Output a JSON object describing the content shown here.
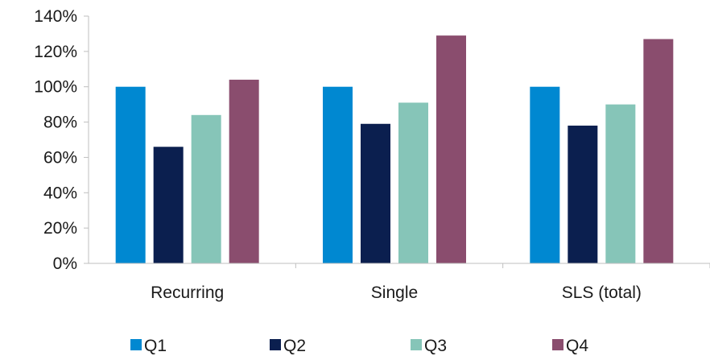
{
  "chart_data": {
    "type": "bar",
    "title": "",
    "xlabel": "",
    "ylabel": "",
    "categories": [
      "Recurring",
      "Single",
      "SLS (total)"
    ],
    "series": [
      {
        "name": "Q1",
        "values": [
          100,
          100,
          100
        ],
        "color": "#0088d1"
      },
      {
        "name": "Q2",
        "values": [
          66,
          79,
          78
        ],
        "color": "#0b1f4f"
      },
      {
        "name": "Q3",
        "values": [
          84,
          91,
          90
        ],
        "color": "#86c5b8"
      },
      {
        "name": "Q4",
        "values": [
          104,
          129,
          127
        ],
        "color": "#8a4d6e"
      }
    ],
    "ylim": [
      0,
      140
    ],
    "yticks": [
      0,
      20,
      40,
      60,
      80,
      100,
      120,
      140
    ],
    "ytick_labels": [
      "0%",
      "20%",
      "40%",
      "60%",
      "80%",
      "100%",
      "120%",
      "140%"
    ],
    "grid": false,
    "legend_position": "bottom"
  }
}
